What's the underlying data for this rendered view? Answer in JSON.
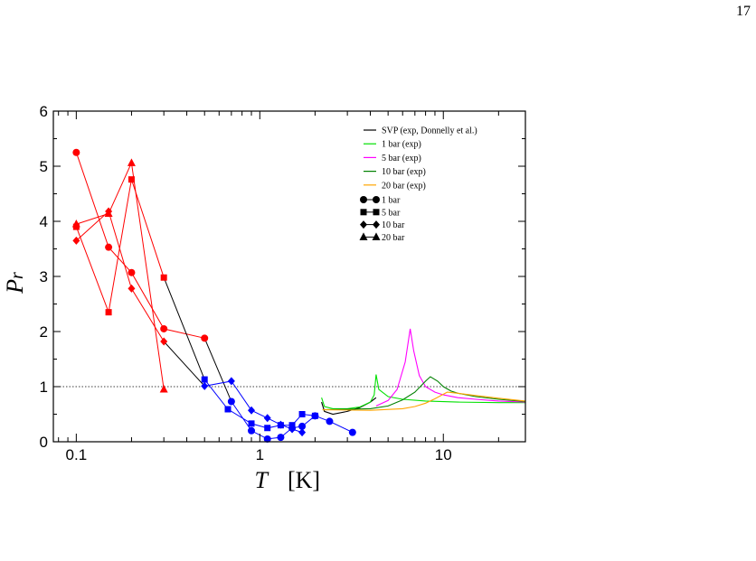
{
  "page_number": "17",
  "chart_data": {
    "type": "line",
    "title": "",
    "xlabel_symbol": "T",
    "xlabel_unit": "[K]",
    "ylabel_main": "P",
    "ylabel_sub": "r",
    "x_scale": "log",
    "xlim": [
      0.075,
      28
    ],
    "ylim": [
      0,
      6
    ],
    "x_ticks": [
      {
        "value": 0.1,
        "label": "0.1"
      },
      {
        "value": 1,
        "label": "1"
      },
      {
        "value": 10,
        "label": "10"
      }
    ],
    "y_ticks": [
      0,
      1,
      2,
      3,
      4,
      5,
      6
    ],
    "reference_line": {
      "y": 1,
      "style": "dotted"
    },
    "legend_position": "top-right",
    "legend_lines": [
      {
        "label": "SVP (exp, Donnelly et al.)",
        "color": "#000000"
      },
      {
        "label": "1 bar (exp)",
        "color": "#00e000"
      },
      {
        "label": "5 bar (exp)",
        "color": "#ff00ff"
      },
      {
        "label": "10 bar (exp)",
        "color": "#008000"
      },
      {
        "label": "20 bar (exp)",
        "color": "#ffa500"
      }
    ],
    "legend_markers": [
      {
        "label": "1 bar",
        "marker": "circle"
      },
      {
        "label": "5 bar",
        "marker": "square"
      },
      {
        "label": "10 bar",
        "marker": "diamond"
      },
      {
        "label": "20 bar",
        "marker": "triangle"
      }
    ],
    "colors": {
      "low_T": "#ff0000",
      "high_T": "#0000ff",
      "bridge": "#000000"
    },
    "sim_series": [
      {
        "name": "1 bar",
        "marker": "circle",
        "low": [
          [
            0.1,
            5.25
          ],
          [
            0.15,
            3.53
          ],
          [
            0.2,
            3.07
          ],
          [
            0.3,
            2.05
          ],
          [
            0.5,
            1.88
          ]
        ],
        "high": [
          [
            0.7,
            0.73
          ],
          [
            0.9,
            0.2
          ],
          [
            1.1,
            0.05
          ],
          [
            1.3,
            0.08
          ],
          [
            1.5,
            0.25
          ],
          [
            1.7,
            0.28
          ],
          [
            2.0,
            0.47
          ],
          [
            2.4,
            0.37
          ],
          [
            3.2,
            0.17
          ]
        ]
      },
      {
        "name": "5 bar",
        "marker": "square",
        "low": [
          [
            0.1,
            3.9
          ],
          [
            0.15,
            2.35
          ],
          [
            0.2,
            4.76
          ],
          [
            0.3,
            2.98
          ]
        ],
        "high": [
          [
            0.5,
            1.13
          ],
          [
            0.67,
            0.59
          ],
          [
            0.9,
            0.33
          ],
          [
            1.1,
            0.25
          ],
          [
            1.3,
            0.3
          ],
          [
            1.5,
            0.3
          ],
          [
            1.7,
            0.5
          ],
          [
            2.0,
            0.47
          ]
        ]
      },
      {
        "name": "10 bar",
        "marker": "diamond",
        "low": [
          [
            0.1,
            3.65
          ],
          [
            0.15,
            4.18
          ],
          [
            0.2,
            2.78
          ],
          [
            0.3,
            1.82
          ]
        ],
        "high": [
          [
            0.5,
            1.01
          ],
          [
            0.7,
            1.1
          ],
          [
            0.9,
            0.57
          ],
          [
            1.1,
            0.43
          ],
          [
            1.3,
            0.31
          ],
          [
            1.5,
            0.23
          ],
          [
            1.7,
            0.17
          ]
        ]
      },
      {
        "name": "20 bar",
        "marker": "triangle",
        "low": [
          [
            0.1,
            3.95
          ],
          [
            0.15,
            4.14
          ],
          [
            0.2,
            5.06
          ],
          [
            0.3,
            0.95
          ]
        ],
        "high": []
      }
    ],
    "exp_series": [
      {
        "name": "SVP",
        "color": "#000000",
        "points": [
          [
            2.17,
            0.72
          ],
          [
            2.25,
            0.55
          ],
          [
            2.5,
            0.5
          ],
          [
            3.0,
            0.55
          ],
          [
            3.5,
            0.62
          ],
          [
            4.0,
            0.72
          ],
          [
            4.3,
            0.8
          ]
        ]
      },
      {
        "name": "1 bar",
        "color": "#00e000",
        "points": [
          [
            2.17,
            0.8
          ],
          [
            2.25,
            0.64
          ],
          [
            2.5,
            0.6
          ],
          [
            3.0,
            0.6
          ],
          [
            3.5,
            0.63
          ],
          [
            4.0,
            0.72
          ],
          [
            4.2,
            0.85
          ],
          [
            4.3,
            1.22
          ],
          [
            4.45,
            0.95
          ],
          [
            5.0,
            0.82
          ],
          [
            6.0,
            0.77
          ],
          [
            8.0,
            0.74
          ],
          [
            12,
            0.72
          ],
          [
            20,
            0.71
          ],
          [
            28,
            0.71
          ]
        ]
      },
      {
        "name": "5 bar",
        "color": "#ff00ff",
        "points": [
          [
            4.3,
            0.65
          ],
          [
            5.0,
            0.75
          ],
          [
            5.6,
            0.95
          ],
          [
            6.2,
            1.45
          ],
          [
            6.6,
            2.05
          ],
          [
            6.9,
            1.65
          ],
          [
            7.4,
            1.2
          ],
          [
            8.0,
            1.0
          ],
          [
            9.0,
            0.9
          ],
          [
            10,
            0.85
          ],
          [
            12,
            0.8
          ],
          [
            15,
            0.77
          ],
          [
            20,
            0.74
          ],
          [
            28,
            0.72
          ]
        ]
      },
      {
        "name": "10 bar",
        "color": "#008000",
        "points": [
          [
            2.2,
            0.58
          ],
          [
            4.0,
            0.6
          ],
          [
            5.0,
            0.65
          ],
          [
            6.0,
            0.76
          ],
          [
            7.0,
            0.9
          ],
          [
            8.0,
            1.1
          ],
          [
            8.5,
            1.18
          ],
          [
            9.3,
            1.1
          ],
          [
            10,
            1.0
          ],
          [
            11,
            0.92
          ],
          [
            12,
            0.88
          ],
          [
            15,
            0.82
          ],
          [
            20,
            0.77
          ],
          [
            28,
            0.73
          ]
        ]
      },
      {
        "name": "20 bar",
        "color": "#ffa500",
        "points": [
          [
            2.2,
            0.58
          ],
          [
            4.0,
            0.57
          ],
          [
            6.0,
            0.6
          ],
          [
            7.0,
            0.64
          ],
          [
            8.0,
            0.7
          ],
          [
            9.0,
            0.78
          ],
          [
            10.5,
            0.9
          ],
          [
            12,
            0.88
          ],
          [
            15,
            0.84
          ],
          [
            20,
            0.79
          ],
          [
            28,
            0.74
          ]
        ]
      }
    ]
  }
}
